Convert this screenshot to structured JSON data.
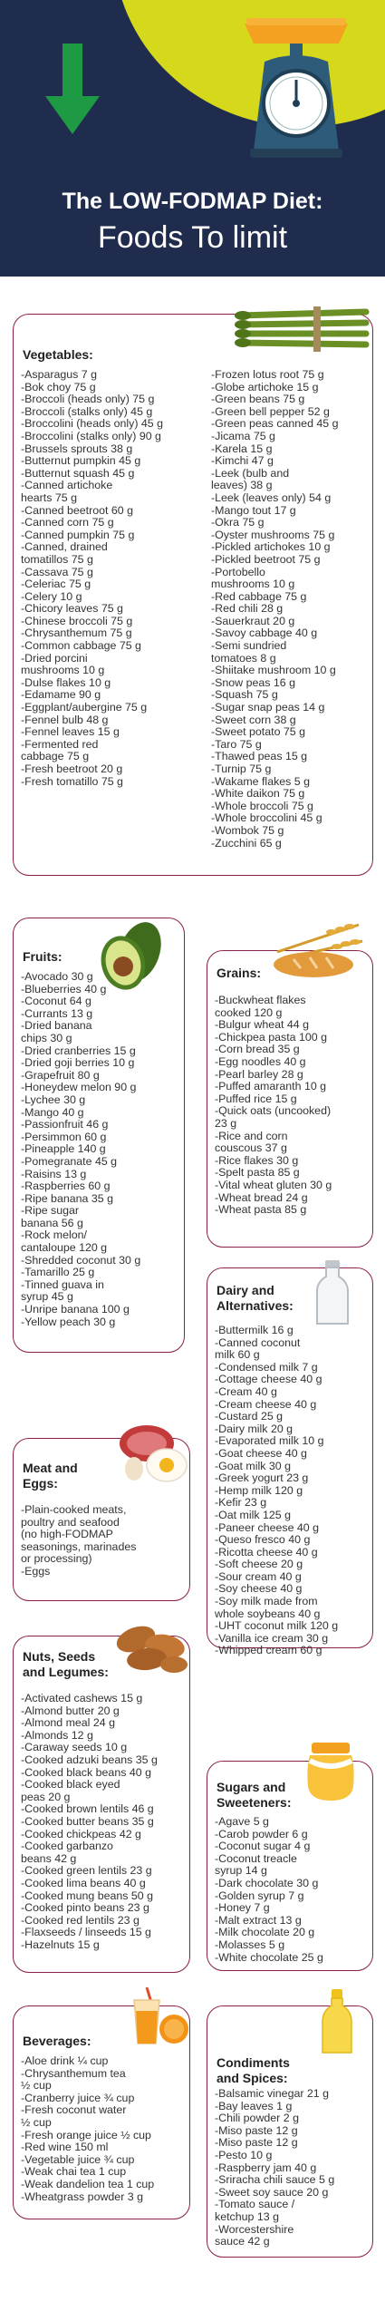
{
  "title": {
    "line1": "The LOW-FODMAP Diet:",
    "line2": "Foods To limit"
  },
  "vegetables": {
    "heading": "Vegetables:",
    "col1": [
      "-Asparagus 7 g",
      "-Bok choy 75 g",
      "-Broccoli (heads only) 75 g",
      "-Broccoli (stalks only) 45 g",
      "-Broccolini (heads only) 45 g",
      "-Broccolini (stalks only) 90 g",
      "-Brussels sprouts 38 g",
      "-Butternut pumpkin 45 g",
      "-Butternut squash 45 g",
      "-Canned artichoke",
      "hearts 75 g",
      "-Canned beetroot 60 g",
      "-Canned corn 75 g",
      "-Canned pumpkin 75 g",
      "-Canned, drained",
      "tomatillos 75 g",
      "-Cassava 75 g",
      "-Celeriac 75 g",
      "-Celery 10 g",
      "-Chicory leaves 75 g",
      "-Chinese broccoli 75 g",
      "-Chrysanthemum 75 g",
      "-Common cabbage 75 g",
      "-Dried porcini",
      "mushrooms 10 g",
      "-Dulse flakes 10 g",
      "-Edamame 90 g",
      "-Eggplant/aubergine 75 g",
      "-Fennel bulb 48 g",
      "-Fennel leaves 15 g",
      "-Fermented red",
      "cabbage 75 g",
      "-Fresh beetroot 20 g",
      "-Fresh tomatillo 75 g"
    ],
    "col2": [
      "-Frozen lotus root 75 g",
      "-Globe artichoke 15 g",
      "-Green beans 75 g",
      "-Green bell pepper 52 g",
      "-Green peas canned 45 g",
      "-Jicama 75 g",
      "-Karela 15 g",
      "-Kimchi 47 g",
      "-Leek (bulb and",
      "leaves) 38 g",
      "-Leek (leaves only) 54 g",
      "-Mango tout 17 g",
      "-Okra 75 g",
      "-Oyster mushrooms 75 g",
      "-Pickled artichokes 10 g",
      "-Pickled beetroot 75 g",
      "-Portobello",
      "mushrooms 10 g",
      "-Red cabbage 75 g",
      "-Red chili 28 g",
      "-Sauerkraut 20 g",
      "-Savoy cabbage 40 g",
      "-Semi sundried",
      "tomatoes 8 g",
      "-Shiitake mushroom 10 g",
      "-Snow peas 16 g",
      "-Squash 75 g",
      "-Sugar snap peas 14 g",
      "-Sweet corn 38 g",
      "-Sweet potato 75 g",
      "-Taro 75 g",
      "-Thawed peas 15 g",
      "-Turnip 75 g",
      "-Wakame flakes 5 g",
      "-White daikon 75 g",
      "-Whole broccoli 75 g",
      "-Whole broccolini 45 g",
      "-Wombok 75 g",
      "-Zucchini 65 g"
    ]
  },
  "fruits": {
    "heading": "Fruits:",
    "items": [
      "-Avocado 30 g",
      "-Blueberries 40 g",
      "-Coconut 64 g",
      "-Currants 13 g",
      "-Dried banana",
      "chips 30 g",
      "-Dried cranberries 15 g",
      "-Dried goji berries 10 g",
      "-Grapefruit 80 g",
      "-Honeydew melon 90 g",
      "-Lychee 30 g",
      "-Mango 40 g",
      "-Passionfruit 46 g",
      "-Persimmon 60 g",
      "-Pineapple 140 g",
      "-Pomegranate 45 g",
      "-Raisins 13 g",
      "-Raspberries 60 g",
      "-Ripe banana 35 g",
      "-Ripe sugar",
      "banana 56 g",
      "-Rock melon/",
      "cantaloupe 120 g",
      "-Shredded coconut 30 g",
      "-Tamarillo 25 g",
      "-Tinned guava in",
      "syrup 45 g",
      "-Unripe banana 100 g",
      "-Yellow peach 30 g"
    ]
  },
  "grains": {
    "heading": "Grains:",
    "items": [
      "-Buckwheat flakes",
      "cooked 120 g",
      "-Bulgur wheat 44 g",
      "-Chickpea pasta 100 g",
      "-Corn bread 35 g",
      "-Egg noodles 40 g",
      "-Pearl barley 28 g",
      "-Puffed amaranth 10 g",
      "-Puffed rice 15 g",
      "-Quick oats (uncooked)",
      "23 g",
      "-Rice and corn",
      "couscous 37 g",
      "-Rice flakes 30 g",
      "-Spelt pasta 85 g",
      "-Vital wheat gluten 30 g",
      "-Wheat bread 24 g",
      "-Wheat pasta 85 g"
    ]
  },
  "dairy": {
    "heading1": "Dairy and",
    "heading2": "Alternatives:",
    "items": [
      "-Buttermilk 16 g",
      "-Canned coconut",
      "milk 60 g",
      "-Condensed milk 7 g",
      "-Cottage cheese 40 g",
      "-Cream 40 g",
      "-Cream cheese 40 g",
      "-Custard 25 g",
      "-Dairy milk 20 g",
      "-Evaporated milk 10 g",
      "-Goat cheese 40 g",
      "-Goat milk 30 g",
      "-Greek yogurt 23 g",
      "-Hemp milk 120 g",
      "-Kefir 23 g",
      "-Oat milk 125 g",
      "-Paneer cheese 40 g",
      "-Queso fresco 40 g",
      "-Ricotta cheese 40 g",
      "-Soft cheese 20 g",
      "-Sour cream 40 g",
      "-Soy cheese 40 g",
      "-Soy milk made from",
      "whole soybeans 40 g",
      "-UHT coconut milk 120 g",
      "-Vanilla ice cream 30 g",
      "-Whipped cream 60 g"
    ]
  },
  "meat": {
    "heading1": "Meat and",
    "heading2": "Eggs:",
    "items": [
      "-Plain-cooked meats,",
      "poultry and seafood",
      "(no high-FODMAP",
      "seasonings, marinades",
      "or processing)",
      "-Eggs"
    ]
  },
  "nuts": {
    "heading1": "Nuts, Seeds",
    "heading2": "and Legumes:",
    "items": [
      "-Activated cashews 15 g",
      "-Almond butter 20 g",
      "-Almond meal 24 g",
      "-Almonds 12 g",
      "-Caraway seeds 10 g",
      "-Cooked adzuki beans 35 g",
      "-Cooked black beans 40 g",
      "-Cooked black eyed",
      "peas 20 g",
      "-Cooked brown lentils 46 g",
      "-Cooked butter beans 35 g",
      "-Cooked chickpeas 42 g",
      "-Cooked garbanzo",
      "beans 42 g",
      "-Cooked green lentils 23 g",
      "-Cooked lima beans 40 g",
      "-Cooked mung beans 50 g",
      "-Cooked pinto beans 23 g",
      "-Cooked red lentils 23 g",
      "-Flaxseeds / linseeds 15 g",
      "-Hazelnuts 15 g"
    ]
  },
  "sugars": {
    "heading1": "Sugars and",
    "heading2": "Sweeteners:",
    "items": [
      "-Agave 5 g",
      "-Carob powder 6 g",
      "-Coconut sugar 4 g",
      "-Coconut treacle",
      "syrup 14 g",
      "-Dark chocolate 30 g",
      "-Golden syrup 7 g",
      "-Honey 7 g",
      "-Malt extract 13 g",
      "-Milk chocolate 20 g",
      "-Molasses 5 g",
      "-White chocolate 25 g"
    ]
  },
  "beverages": {
    "heading": "Beverages:",
    "items": [
      "-Aloe drink ¼ cup",
      "-Chrysanthemum tea",
      "½ cup",
      "-Cranberry juice ¾ cup",
      "-Fresh coconut water",
      "½ cup",
      "-Fresh orange juice ½ cup",
      "-Red wine 150 ml",
      "-Vegetable juice ¾ cup",
      "-Weak chai tea 1 cup",
      "-Weak dandelion tea 1 cup",
      "-Wheatgrass powder 3 g"
    ]
  },
  "condiments": {
    "heading1": "Condiments",
    "heading2": "and Spices:",
    "items": [
      "-Balsamic vinegar 21 g",
      "-Bay leaves 1 g",
      "-Chili powder 2 g",
      "-Miso paste 12 g",
      "-Miso paste 12 g",
      "-Pesto 10 g",
      "-Raspberry jam 40 g",
      "-Sriracha chili sauce 5 g",
      "-Sweet soy sauce 20 g",
      "-Tomato sauce /",
      "ketchup 13 g",
      "-Worcestershire",
      "sauce 42 g"
    ]
  },
  "colors": {
    "navy": "#1f2c4d",
    "lime": "#d6d81c",
    "border": "#8b1e4a",
    "arrow": "#1e9a45",
    "scale": "#2e5b7a"
  },
  "icons": [
    "down-arrow-icon",
    "kitchen-scale-icon",
    "asparagus-icon",
    "avocado-icon",
    "wheat-bread-icon",
    "milk-bottle-icon",
    "meat-egg-icon",
    "almonds-icon",
    "honey-jar-icon",
    "orange-juice-icon",
    "sauce-bottle-icon"
  ]
}
